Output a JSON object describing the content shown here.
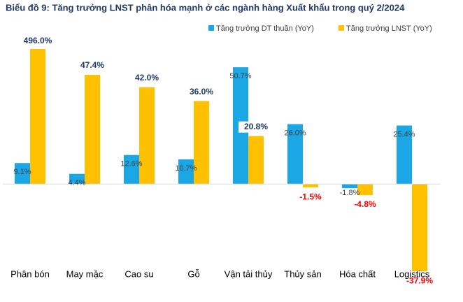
{
  "chart_data": {
    "type": "bar",
    "title": "Biểu đồ 9: Tăng trưởng LNST phân hóa mạnh ở các ngành hàng Xuất khẩu trong quý 2/2024",
    "categories": [
      "Phân bón",
      "May mặc",
      "Cao su",
      "Gỗ",
      "Vận tải thủy",
      "Thủy sản",
      "Hóa chất",
      "Logistics"
    ],
    "series": [
      {
        "name": "Tăng trưởng DT thuần (YoY)",
        "color": "#1ba6e6",
        "values": [
          9.1,
          4.4,
          12.6,
          10.7,
          50.7,
          26.0,
          -1.8,
          25.4
        ],
        "value_labels": [
          "9.1%",
          "4.4%",
          "12.6%",
          "10.7%",
          "50.7%",
          "26.0%",
          "-1.8%",
          "25.4%"
        ]
      },
      {
        "name": "Tăng trưởng LNST (YoY)",
        "color": "#ffc000",
        "values": [
          496.0,
          47.4,
          42.0,
          36.0,
          20.8,
          -1.5,
          -4.8,
          -37.9
        ],
        "value_labels": [
          "496.0%",
          "47.4%",
          "42.0%",
          "36.0%",
          "20.8%",
          "-1.5%",
          "-4.8%",
          "-37.9%"
        ]
      }
    ],
    "ylim": [
      -40,
      55
    ]
  }
}
